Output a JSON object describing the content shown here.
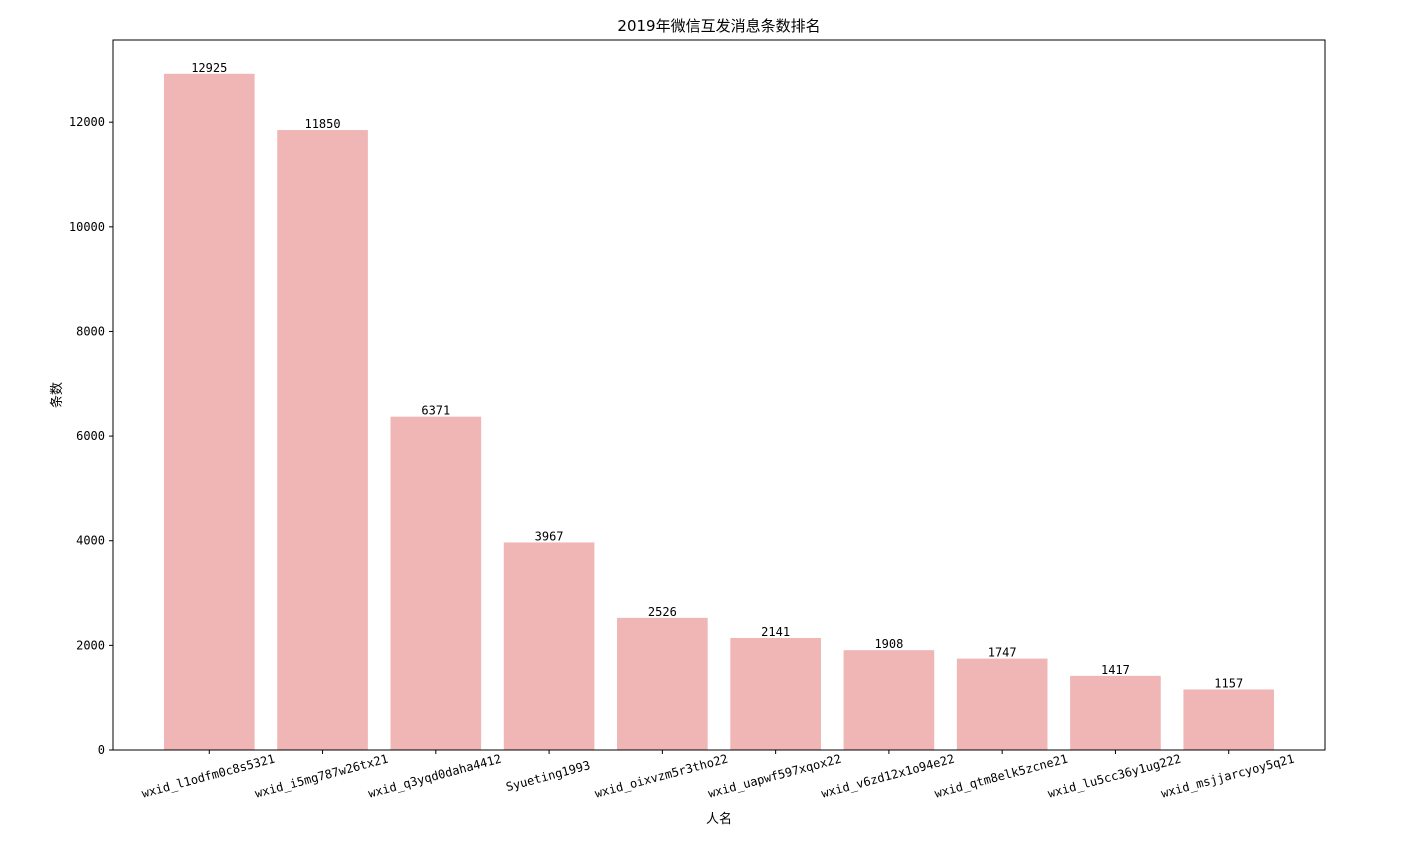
{
  "chart_data": {
    "type": "bar",
    "title": "2019年微信互发消息条数排名",
    "x_label": "人名",
    "y_label": "条数",
    "categories": [
      "wxid_l1odfm0c8s5321",
      "wxid_i5mg787w26tx21",
      "wxid_q3yqd0daha4412",
      "Syueting1993",
      "wxid_oixvzm5r3tho22",
      "wxid_uapwf597xqox22",
      "wxid_v6zd12x1o94e22",
      "wxid_qtm8elk5zcne21",
      "wxid_lu5cc36y1ug222",
      "wxid_msjjarcyoy5q21"
    ],
    "values": [
      12925,
      11850,
      6371,
      3967,
      2526,
      2141,
      1908,
      1747,
      1417,
      1157
    ],
    "color": "#f0b5b5",
    "ylim": [
      0,
      13571
    ],
    "yticks": [
      0,
      2000,
      4000,
      6000,
      8000,
      10000,
      12000
    ],
    "grid": false
  }
}
